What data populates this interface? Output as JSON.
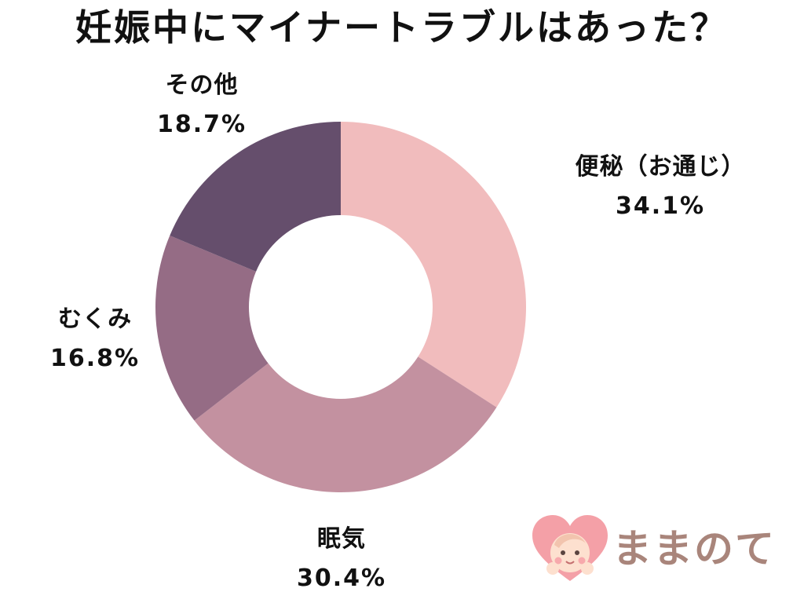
{
  "chart_data": {
    "type": "pie",
    "title": "妊娠中にマイナートラブルはあった？",
    "categories": [
      "便秘（お通じ）",
      "眠気",
      "むくみ",
      "その他"
    ],
    "values": [
      34.1,
      30.4,
      16.8,
      18.7
    ],
    "value_labels": [
      "34.1%",
      "30.4%",
      "16.8%",
      "18.7%"
    ],
    "colors": [
      "#f1bcbd",
      "#c391a0",
      "#956c85",
      "#654e6c"
    ],
    "donut": true,
    "start": "top",
    "direction": "clockwise",
    "legend": "none"
  },
  "brand": {
    "name": "ままのて"
  }
}
